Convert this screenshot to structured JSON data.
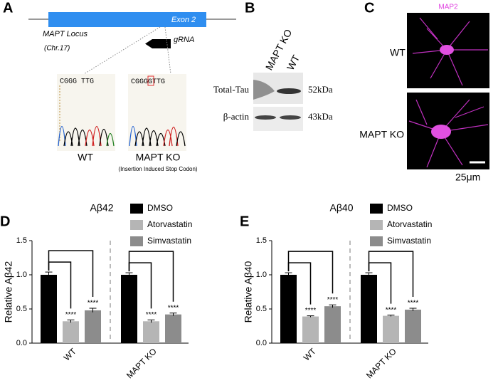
{
  "panels": {
    "a": {
      "label": "A",
      "exon": "Exon 2",
      "locus": "MAPT Locus",
      "chromosome": "(Chr.17)",
      "grna": "gRNA",
      "wt_sequence": "CGGG TTG",
      "ko_sequence_before": "CGGG",
      "ko_sequence_insert": "G",
      "ko_sequence_after": "TTG",
      "wt_label": "WT",
      "ko_label": "MAPT KO",
      "ko_note": "(Insertion Induced Stop Codon)"
    },
    "b": {
      "label": "B",
      "lanes": [
        "MAPT KO",
        "WT"
      ],
      "blots": [
        {
          "name": "Total-Tau",
          "size": "52kDa"
        },
        {
          "name": "β-actin",
          "size": "43kDa"
        }
      ]
    },
    "c": {
      "label": "C",
      "stain": "MAP2",
      "rows": [
        "WT",
        "MAPT KO"
      ],
      "scale": "25μm"
    }
  },
  "chart_data": [
    {
      "type": "bar",
      "panel": "D",
      "title": "Aβ42",
      "ylabel": "Relative Aβ42",
      "categories": [
        "WT",
        "MAPT KO"
      ],
      "series": [
        {
          "name": "DMSO",
          "color": "#000000",
          "values": [
            1.0,
            1.0
          ],
          "errors": [
            0.04,
            0.03
          ]
        },
        {
          "name": "Atorvastatin",
          "color": "#b5b5b5",
          "values": [
            0.32,
            0.32
          ],
          "errors": [
            0.02,
            0.02
          ],
          "annotations": [
            "****",
            "****"
          ]
        },
        {
          "name": "Simvastatin",
          "color": "#8c8c8c",
          "values": [
            0.48,
            0.42
          ],
          "errors": [
            0.03,
            0.02
          ],
          "annotations": [
            "****",
            "****"
          ]
        }
      ],
      "ylim": [
        0,
        1.5
      ],
      "yticks": [
        {
          "value": 0,
          "label": "0.0"
        },
        0.5,
        {
          "value": 1,
          "label": "1.0"
        },
        1.5
      ]
    },
    {
      "type": "bar",
      "panel": "E",
      "title": "Aβ40",
      "ylabel": "Relative Aβ40",
      "categories": [
        "WT",
        "MAPT KO"
      ],
      "series": [
        {
          "name": "DMSO",
          "color": "#000000",
          "values": [
            1.0,
            1.0
          ],
          "errors": [
            0.03,
            0.03
          ]
        },
        {
          "name": "Atorvastatin",
          "color": "#b5b5b5",
          "values": [
            0.39,
            0.4
          ],
          "errors": [
            0.01,
            0.01
          ],
          "annotations": [
            "****",
            "****"
          ]
        },
        {
          "name": "Simvastatin",
          "color": "#8c8c8c",
          "values": [
            0.54,
            0.49
          ],
          "errors": [
            0.02,
            0.02
          ],
          "annotations": [
            "****",
            "****"
          ]
        }
      ],
      "ylim": [
        0,
        1.5
      ],
      "yticks": [
        {
          "value": 0,
          "label": "0.0"
        },
        0.5,
        {
          "value": 1,
          "label": "1.0"
        },
        1.5
      ]
    }
  ]
}
